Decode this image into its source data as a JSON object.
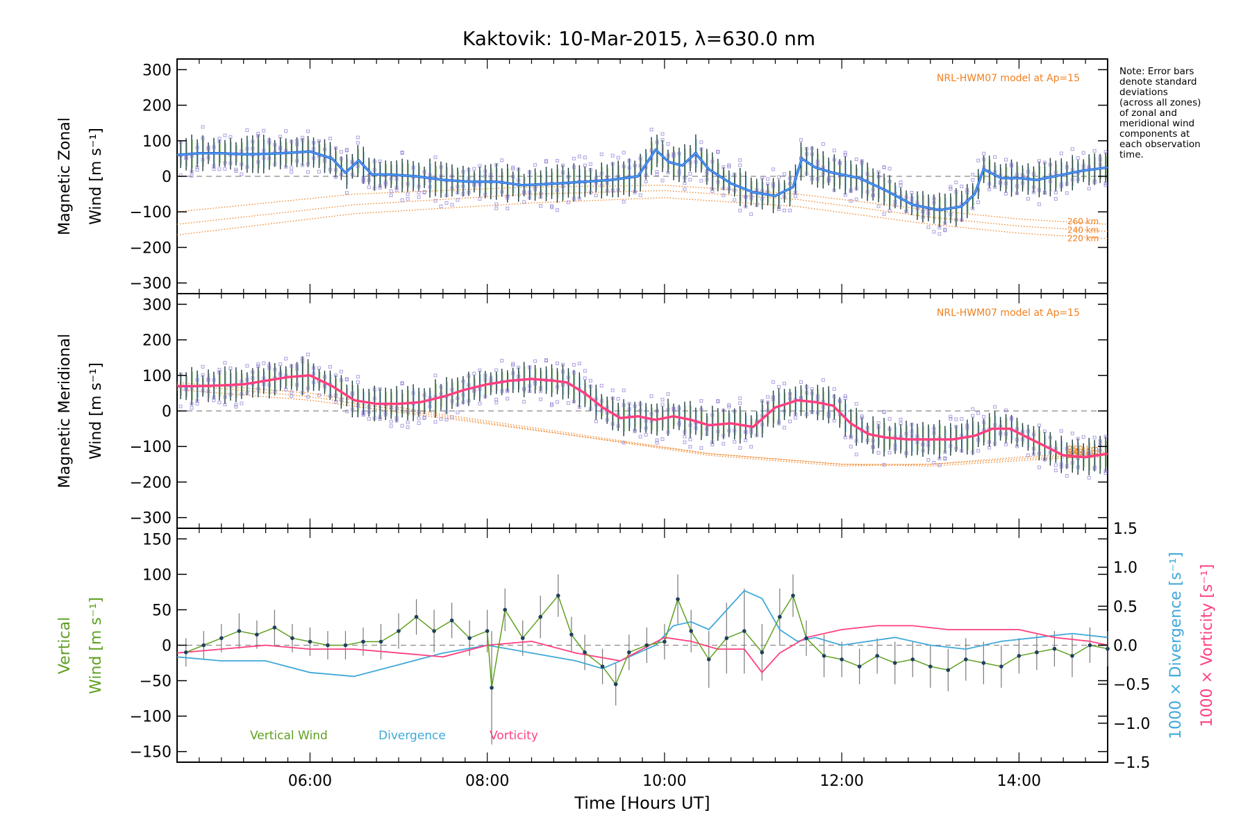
{
  "chart_data": {
    "title": "Kaktovik: 10-Mar-2015, λ=630.0 nm",
    "xlabel": "Time [Hours UT]",
    "xlim": [
      4.5,
      15.0
    ],
    "xticks": [
      {
        "value": 6,
        "label": "06:00"
      },
      {
        "value": 8,
        "label": "08:00"
      },
      {
        "value": 10,
        "label": "10:00"
      },
      {
        "value": 12,
        "label": "12:00"
      },
      {
        "value": 14,
        "label": "14:00"
      }
    ],
    "note_lines": [
      "Note: Error bars",
      "denote standard",
      "deviations",
      "(across all zones)",
      "of zonal and",
      "meridional wind",
      "components at",
      "each observation",
      "time."
    ],
    "colors": {
      "zonal": "#2060e0",
      "zonal_light": "#5aa8e8",
      "meridional": "#ff3f7f",
      "model": "#f08020",
      "vertical": "#5fa020",
      "divergence": "#3fa8d8",
      "vorticity": "#ff3f7f",
      "errorbar": "#1a3a3a",
      "scatter": "#8878d0",
      "marker": "#1f3f5f"
    },
    "panels": [
      {
        "id": "zonal",
        "type": "line",
        "ylabel_line1": "Magnetic Zonal",
        "ylabel_line2": "Wind [m s⁻¹]",
        "ylim": [
          -330,
          330
        ],
        "yticks": [
          -300,
          -200,
          -100,
          0,
          100,
          200,
          300
        ],
        "annotation": "NRL-HWM07 model at Ap=15",
        "series_name": "",
        "x": [
          4.5,
          4.75,
          5.0,
          5.25,
          5.5,
          5.75,
          6.0,
          6.25,
          6.4,
          6.55,
          6.7,
          6.9,
          7.2,
          7.5,
          7.8,
          8.1,
          8.4,
          8.8,
          9.1,
          9.4,
          9.7,
          9.9,
          10.05,
          10.2,
          10.35,
          10.5,
          10.75,
          11.0,
          11.25,
          11.45,
          11.55,
          11.7,
          11.9,
          12.2,
          12.5,
          12.8,
          13.1,
          13.35,
          13.5,
          13.6,
          13.8,
          14.0,
          14.2,
          14.4,
          14.7,
          15.0
        ],
        "values": [
          60,
          65,
          65,
          62,
          63,
          66,
          70,
          50,
          10,
          45,
          5,
          5,
          0,
          -10,
          -15,
          -15,
          -25,
          -20,
          -15,
          -10,
          0,
          75,
          40,
          30,
          65,
          20,
          -20,
          -45,
          -55,
          -30,
          50,
          25,
          10,
          -5,
          -40,
          -80,
          -95,
          -85,
          -50,
          20,
          -5,
          -5,
          -10,
          0,
          15,
          25
        ],
        "model_series": [
          {
            "label": "260 km",
            "x": [
              4.5,
              6.5,
              8.5,
              10.0,
              11.5,
              13.0,
              14.0,
              15.0
            ],
            "values": [
              -100,
              -50,
              -30,
              -25,
              -50,
              -95,
              -120,
              -135
            ]
          },
          {
            "label": "240 km",
            "x": [
              4.5,
              6.5,
              8.5,
              10.0,
              11.5,
              13.0,
              14.0,
              15.0
            ],
            "values": [
              -135,
              -80,
              -50,
              -40,
              -65,
              -115,
              -140,
              -155
            ]
          },
          {
            "label": "220 km",
            "x": [
              4.5,
              6.5,
              8.5,
              10.0,
              11.5,
              13.0,
              14.0,
              15.0
            ],
            "values": [
              -165,
              -105,
              -75,
              -60,
              -85,
              -135,
              -160,
              -175
            ]
          }
        ]
      },
      {
        "id": "meridional",
        "type": "line",
        "ylabel_line1": "Magnetic Meridional",
        "ylabel_line2": "Wind [m s⁻¹]",
        "ylim": [
          -330,
          330
        ],
        "yticks": [
          -300,
          -200,
          -100,
          0,
          100,
          200,
          300
        ],
        "annotation": "NRL-HWM07 model at Ap=15",
        "series_name": "",
        "x": [
          4.5,
          4.75,
          5.0,
          5.25,
          5.5,
          5.75,
          6.0,
          6.25,
          6.5,
          6.75,
          7.0,
          7.25,
          7.5,
          7.75,
          8.0,
          8.25,
          8.5,
          8.75,
          8.9,
          9.1,
          9.3,
          9.5,
          9.7,
          9.9,
          10.1,
          10.3,
          10.5,
          10.75,
          11.0,
          11.25,
          11.5,
          11.7,
          11.9,
          12.1,
          12.3,
          12.5,
          12.75,
          13.0,
          13.25,
          13.5,
          13.7,
          13.9,
          14.1,
          14.3,
          14.5,
          14.75,
          15.0
        ],
        "values": [
          70,
          70,
          72,
          75,
          85,
          95,
          100,
          70,
          30,
          20,
          20,
          25,
          40,
          60,
          75,
          85,
          90,
          85,
          80,
          50,
          10,
          -20,
          -15,
          -25,
          -15,
          -25,
          -40,
          -35,
          -45,
          10,
          30,
          25,
          15,
          -35,
          -65,
          -75,
          -80,
          -80,
          -80,
          -70,
          -50,
          -50,
          -75,
          -100,
          -125,
          -130,
          -120
        ],
        "model_series": [
          {
            "label": "260 km",
            "x": [
              4.5,
              6.0,
              7.5,
              9.0,
              10.5,
              12.0,
              13.0,
              14.0,
              15.0
            ],
            "values": [
              60,
              30,
              -20,
              -70,
              -120,
              -150,
              -150,
              -130,
              -115
            ]
          },
          {
            "label": "240 km",
            "x": [
              4.5,
              6.0,
              7.5,
              9.0,
              10.5,
              12.0,
              13.0,
              14.0,
              15.0
            ],
            "values": [
              75,
              40,
              -15,
              -70,
              -125,
              -155,
              -150,
              -135,
              -120
            ]
          },
          {
            "label": "220 km",
            "x": [
              4.5,
              6.0,
              7.5,
              9.0,
              10.5,
              12.0,
              13.0,
              14.0,
              15.0
            ],
            "values": [
              80,
              50,
              -10,
              -65,
              -120,
              -150,
              -155,
              -140,
              -125
            ]
          }
        ]
      },
      {
        "id": "vertical",
        "type": "line",
        "ylabel_line1": "Vertical",
        "ylabel_line2": "Wind [m s⁻¹]",
        "ylim": [
          -165,
          165
        ],
        "yticks": [
          -150,
          -100,
          -50,
          0,
          50,
          100,
          150
        ],
        "y2label_line1": "1000 × Divergence [s⁻¹]",
        "y2label_line2": "1000 × Vorticity [s⁻¹]",
        "y2lim": [
          -1.5,
          1.5
        ],
        "y2ticks": [
          -1.5,
          -1.0,
          -0.5,
          0.0,
          0.5,
          1.0,
          1.5
        ],
        "legend": [
          "Vertical Wind",
          "Divergence",
          "Vorticity"
        ],
        "vertical_wind": {
          "x": [
            4.6,
            4.8,
            5.0,
            5.2,
            5.4,
            5.6,
            5.8,
            6.0,
            6.2,
            6.4,
            6.6,
            6.8,
            7.0,
            7.2,
            7.4,
            7.6,
            7.8,
            8.0,
            8.05,
            8.2,
            8.4,
            8.6,
            8.8,
            8.95,
            9.1,
            9.3,
            9.45,
            9.6,
            9.8,
            10.0,
            10.15,
            10.3,
            10.5,
            10.7,
            10.9,
            11.1,
            11.3,
            11.45,
            11.6,
            11.8,
            12.0,
            12.2,
            12.4,
            12.6,
            12.8,
            13.0,
            13.2,
            13.4,
            13.6,
            13.8,
            14.0,
            14.2,
            14.4,
            14.6,
            14.8,
            15.0
          ],
          "values": [
            -10,
            0,
            10,
            20,
            15,
            25,
            10,
            5,
            0,
            0,
            5,
            5,
            20,
            40,
            20,
            35,
            10,
            20,
            -60,
            50,
            10,
            40,
            70,
            15,
            -10,
            -30,
            -55,
            -10,
            0,
            5,
            65,
            20,
            -20,
            10,
            20,
            -10,
            40,
            70,
            10,
            -15,
            -20,
            -30,
            -15,
            -25,
            -20,
            -30,
            -35,
            -20,
            -25,
            -30,
            -15,
            -10,
            -5,
            -15,
            0,
            -5
          ],
          "errors": [
            20,
            20,
            20,
            25,
            20,
            25,
            20,
            20,
            20,
            20,
            20,
            25,
            25,
            25,
            30,
            25,
            25,
            30,
            80,
            30,
            25,
            30,
            30,
            25,
            25,
            25,
            30,
            25,
            25,
            25,
            35,
            30,
            40,
            50,
            60,
            40,
            40,
            30,
            25,
            30,
            25,
            25,
            25,
            30,
            25,
            30,
            30,
            30,
            30,
            30,
            25,
            25,
            25,
            30,
            25,
            25
          ]
        },
        "divergence": {
          "x": [
            4.5,
            5.0,
            5.5,
            6.0,
            6.5,
            7.0,
            7.5,
            8.0,
            8.5,
            9.0,
            9.3,
            9.6,
            9.9,
            10.1,
            10.3,
            10.5,
            10.7,
            10.9,
            11.1,
            11.3,
            11.5,
            11.7,
            12.0,
            12.3,
            12.6,
            13.0,
            13.4,
            13.8,
            14.2,
            14.6,
            15.0
          ],
          "values": [
            -0.15,
            -0.2,
            -0.2,
            -0.35,
            -0.4,
            -0.25,
            -0.1,
            0.0,
            -0.1,
            -0.2,
            -0.3,
            -0.15,
            0.0,
            0.25,
            0.3,
            0.2,
            0.45,
            0.7,
            0.6,
            0.2,
            0.05,
            0.1,
            0.0,
            0.05,
            0.1,
            0.0,
            -0.05,
            0.05,
            0.1,
            0.15,
            0.1
          ]
        },
        "vorticity": {
          "x": [
            4.5,
            5.0,
            5.5,
            6.0,
            6.5,
            7.0,
            7.5,
            8.0,
            8.5,
            9.0,
            9.5,
            10.0,
            10.3,
            10.6,
            10.9,
            11.1,
            11.3,
            11.6,
            12.0,
            12.4,
            12.8,
            13.2,
            13.6,
            14.0,
            14.4,
            14.8,
            15.0
          ],
          "values": [
            -0.1,
            -0.05,
            0.0,
            -0.05,
            -0.05,
            -0.1,
            -0.15,
            0.0,
            0.05,
            -0.1,
            -0.2,
            0.1,
            0.05,
            -0.05,
            -0.05,
            -0.35,
            -0.1,
            0.1,
            0.2,
            0.25,
            0.25,
            0.2,
            0.2,
            0.2,
            0.1,
            0.05,
            0.0
          ]
        }
      }
    ]
  }
}
